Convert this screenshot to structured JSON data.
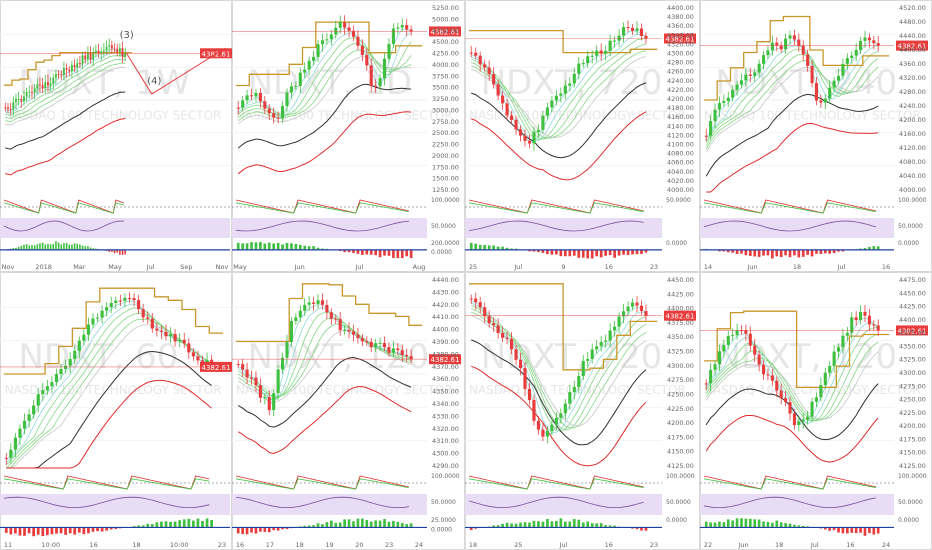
{
  "colors": {
    "up": "#3fbf3f",
    "down": "#e83c3c",
    "ma_fast": "#7fd4d4",
    "ma_mid": "#6fcf6f",
    "ma_slow": "#bdbdbd",
    "ma_black": "#303030",
    "ma_red": "#e02b2b",
    "stop_line": "#c8962a",
    "price_line": "#e83c3c",
    "osc_bg": "#e9dcf5",
    "watermark": "#e6e6e6"
  },
  "chart_data": [
    {
      "type": "candlestick",
      "panel": "r1c1",
      "watermark": "NDXT, 1W",
      "price_tag": "4382.61",
      "y_ticks": [],
      "x_ticks": [
        "Nov",
        "2018",
        "Mar",
        "May",
        "Jul",
        "Sep",
        "Nov"
      ],
      "annotations": [
        "(3)",
        "(4)"
      ],
      "osc2_ticks": [],
      "hist_ticks": []
    },
    {
      "type": "candlestick",
      "panel": "r1c2",
      "watermark": "NDXT, 1D",
      "price_tag": "4382.61",
      "y_ticks": [
        "5250.00",
        "5000.00",
        "4750.00",
        "4500.00",
        "4250.00",
        "4000.00",
        "3750.00",
        "3500.00",
        "3250.00",
        "3000.00",
        "2750.00",
        "2500.00",
        "2250.00",
        "2000.00",
        "1750.00",
        "1500.00",
        "1250.00"
      ],
      "x_ticks": [
        "May",
        "Jun",
        "Jul",
        "Aug"
      ],
      "osc2_ticks": [
        "100.0000",
        "50.0000"
      ],
      "hist_ticks": [
        "200.0000",
        "0.0000"
      ]
    },
    {
      "type": "candlestick",
      "panel": "r1c3",
      "watermark": "NDXT, 720",
      "price_tag": "4382.61",
      "y_ticks": [
        "4400.00",
        "4380.00",
        "4360.00",
        "4340.00",
        "4320.00",
        "4300.00",
        "4280.00",
        "4260.00",
        "4240.00",
        "4220.00",
        "4200.00",
        "4180.00",
        "4160.00",
        "4140.00",
        "4120.00",
        "4100.00",
        "4080.00",
        "4060.00",
        "4040.00",
        "4020.00",
        "4000.00"
      ],
      "x_ticks": [
        "25",
        "Jul",
        "9",
        "16",
        "23"
      ],
      "osc2_ticks": [
        "50.0000"
      ],
      "hist_ticks": [
        "0.0000"
      ]
    },
    {
      "type": "candlestick",
      "panel": "r1c4",
      "watermark": "NDXT, 240",
      "price_tag": "4382.61",
      "y_ticks": [
        "4520.00",
        "4480.00",
        "4440.00",
        "4400.00",
        "4360.00",
        "4320.00",
        "4280.00",
        "4240.00",
        "4200.00",
        "4160.00",
        "4120.00",
        "4080.00",
        "4040.00",
        "4000.00"
      ],
      "x_ticks": [
        "14",
        "Jun",
        "18",
        "Jul",
        "16"
      ],
      "osc2_ticks": [
        "100.0000",
        "50.0000"
      ],
      "hist_ticks": [
        "0.0000"
      ]
    },
    {
      "type": "candlestick",
      "panel": "r2c1",
      "watermark": "NDXT, 60",
      "price_tag": "4382.61",
      "y_ticks": [],
      "x_ticks": [
        "11",
        "10:00",
        "16",
        "18",
        "10:00",
        "23"
      ],
      "osc2_ticks": [],
      "hist_ticks": []
    },
    {
      "type": "candlestick",
      "panel": "r2c2",
      "watermark": "NDXT, 120",
      "price_tag": "4382.61",
      "y_ticks": [
        "4440.00",
        "4430.00",
        "4420.00",
        "4410.00",
        "4400.00",
        "4390.00",
        "4380.00",
        "4370.00",
        "4360.00",
        "4350.00",
        "4340.00",
        "4330.00",
        "4320.00",
        "4310.00",
        "4300.00",
        "4290.00"
      ],
      "x_ticks": [
        "16",
        "17",
        "18",
        "19",
        "20",
        "23",
        "24"
      ],
      "osc2_ticks": [
        "100.0000",
        "50.0000"
      ],
      "hist_ticks": [
        "25.0000",
        "0.0000"
      ]
    },
    {
      "type": "candlestick",
      "panel": "r2c3",
      "watermark": "NDXT, 720",
      "price_tag": "4382.61",
      "y_ticks": [
        "4450.00",
        "4425.00",
        "4400.00",
        "4375.00",
        "4350.00",
        "4325.00",
        "4300.00",
        "4275.00",
        "4250.00",
        "4225.00",
        "4200.00",
        "4175.00",
        "4150.00",
        "4125.00"
      ],
      "x_ticks": [
        "18",
        "25",
        "Jul",
        "16",
        "23"
      ],
      "osc2_ticks": [
        "100.0000",
        "50.0000"
      ],
      "hist_ticks": [
        "0.0000"
      ]
    },
    {
      "type": "candlestick",
      "panel": "r2c4",
      "watermark": "NDXT, 120",
      "price_tag": "4382.61",
      "y_ticks": [
        "4475.00",
        "4450.00",
        "4425.00",
        "4400.00",
        "4375.00",
        "4350.00",
        "4325.00",
        "4300.00",
        "4275.00",
        "4250.00",
        "4225.00",
        "4200.00",
        "4175.00",
        "4150.00",
        "4125.00"
      ],
      "x_ticks": [
        "22",
        "Jun",
        "18",
        "Jul",
        "16",
        "24"
      ],
      "osc2_ticks": [
        "100.0000",
        "50.0000"
      ],
      "hist_ticks": [
        "0.0000"
      ]
    }
  ]
}
